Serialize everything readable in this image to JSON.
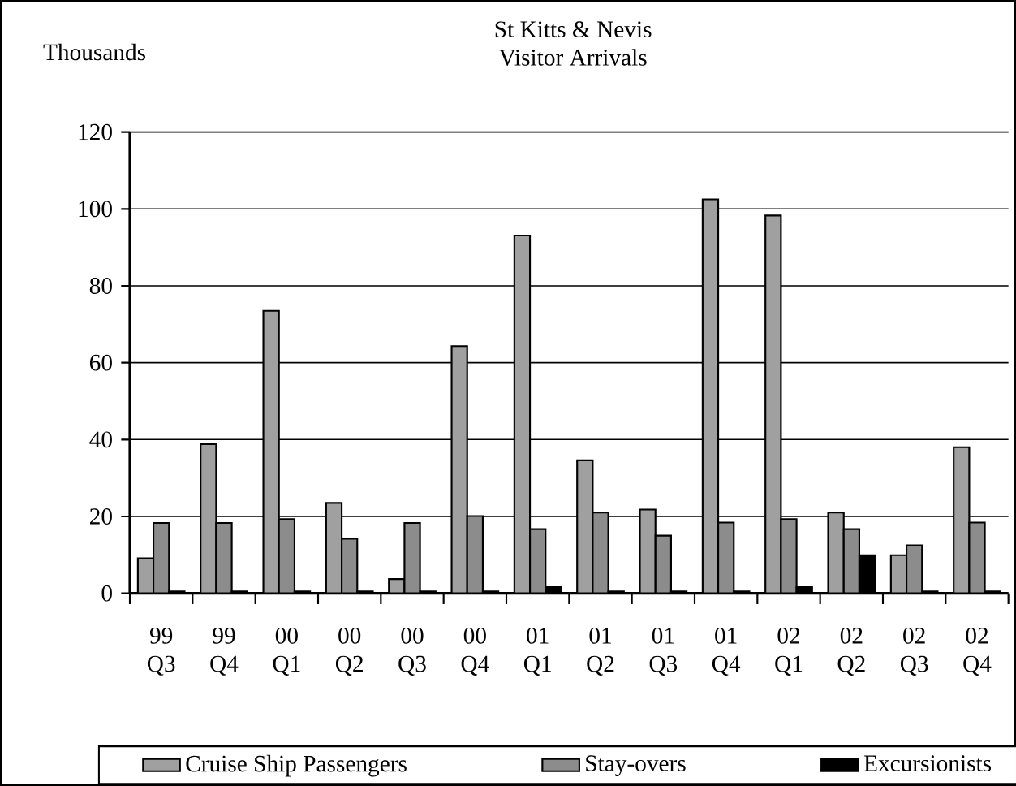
{
  "chart_data": {
    "type": "bar",
    "title": "St Kitts & Nevis",
    "subtitle": "Visitor Arrivals",
    "ylabel": "Thousands",
    "categories": [
      "99 Q3",
      "99 Q4",
      "00 Q1",
      "00 Q2",
      "00 Q3",
      "00 Q4",
      "01 Q1",
      "01 Q2",
      "01 Q3",
      "01 Q4",
      "02 Q1",
      "02 Q2",
      "02 Q3",
      "02 Q4"
    ],
    "series": [
      {
        "name": "Cruise Ship Passengers",
        "color": "#a0a0a0",
        "values": [
          9.1,
          38.8,
          73.5,
          23.5,
          3.7,
          64.3,
          93.1,
          34.6,
          21.8,
          102.5,
          98.3,
          21,
          9.9,
          38
        ]
      },
      {
        "name": "Stay-overs",
        "color": "#8c8c8c",
        "values": [
          18.3,
          18.3,
          19.3,
          14.2,
          18.3,
          20.1,
          16.7,
          21,
          15,
          18.4,
          19.3,
          16.7,
          12.5,
          18.4
        ]
      },
      {
        "name": "Excursionists",
        "color": "#000000",
        "values": [
          0.5,
          0.5,
          0.5,
          0.5,
          0.5,
          0.5,
          1.6,
          0.5,
          0.5,
          0.5,
          1.6,
          9.9,
          0.5,
          0.5
        ]
      }
    ],
    "ylim": [
      0,
      120
    ],
    "yticks": [
      0,
      20,
      40,
      60,
      80,
      100,
      120
    ],
    "grid": "y",
    "legend": "bottom"
  }
}
